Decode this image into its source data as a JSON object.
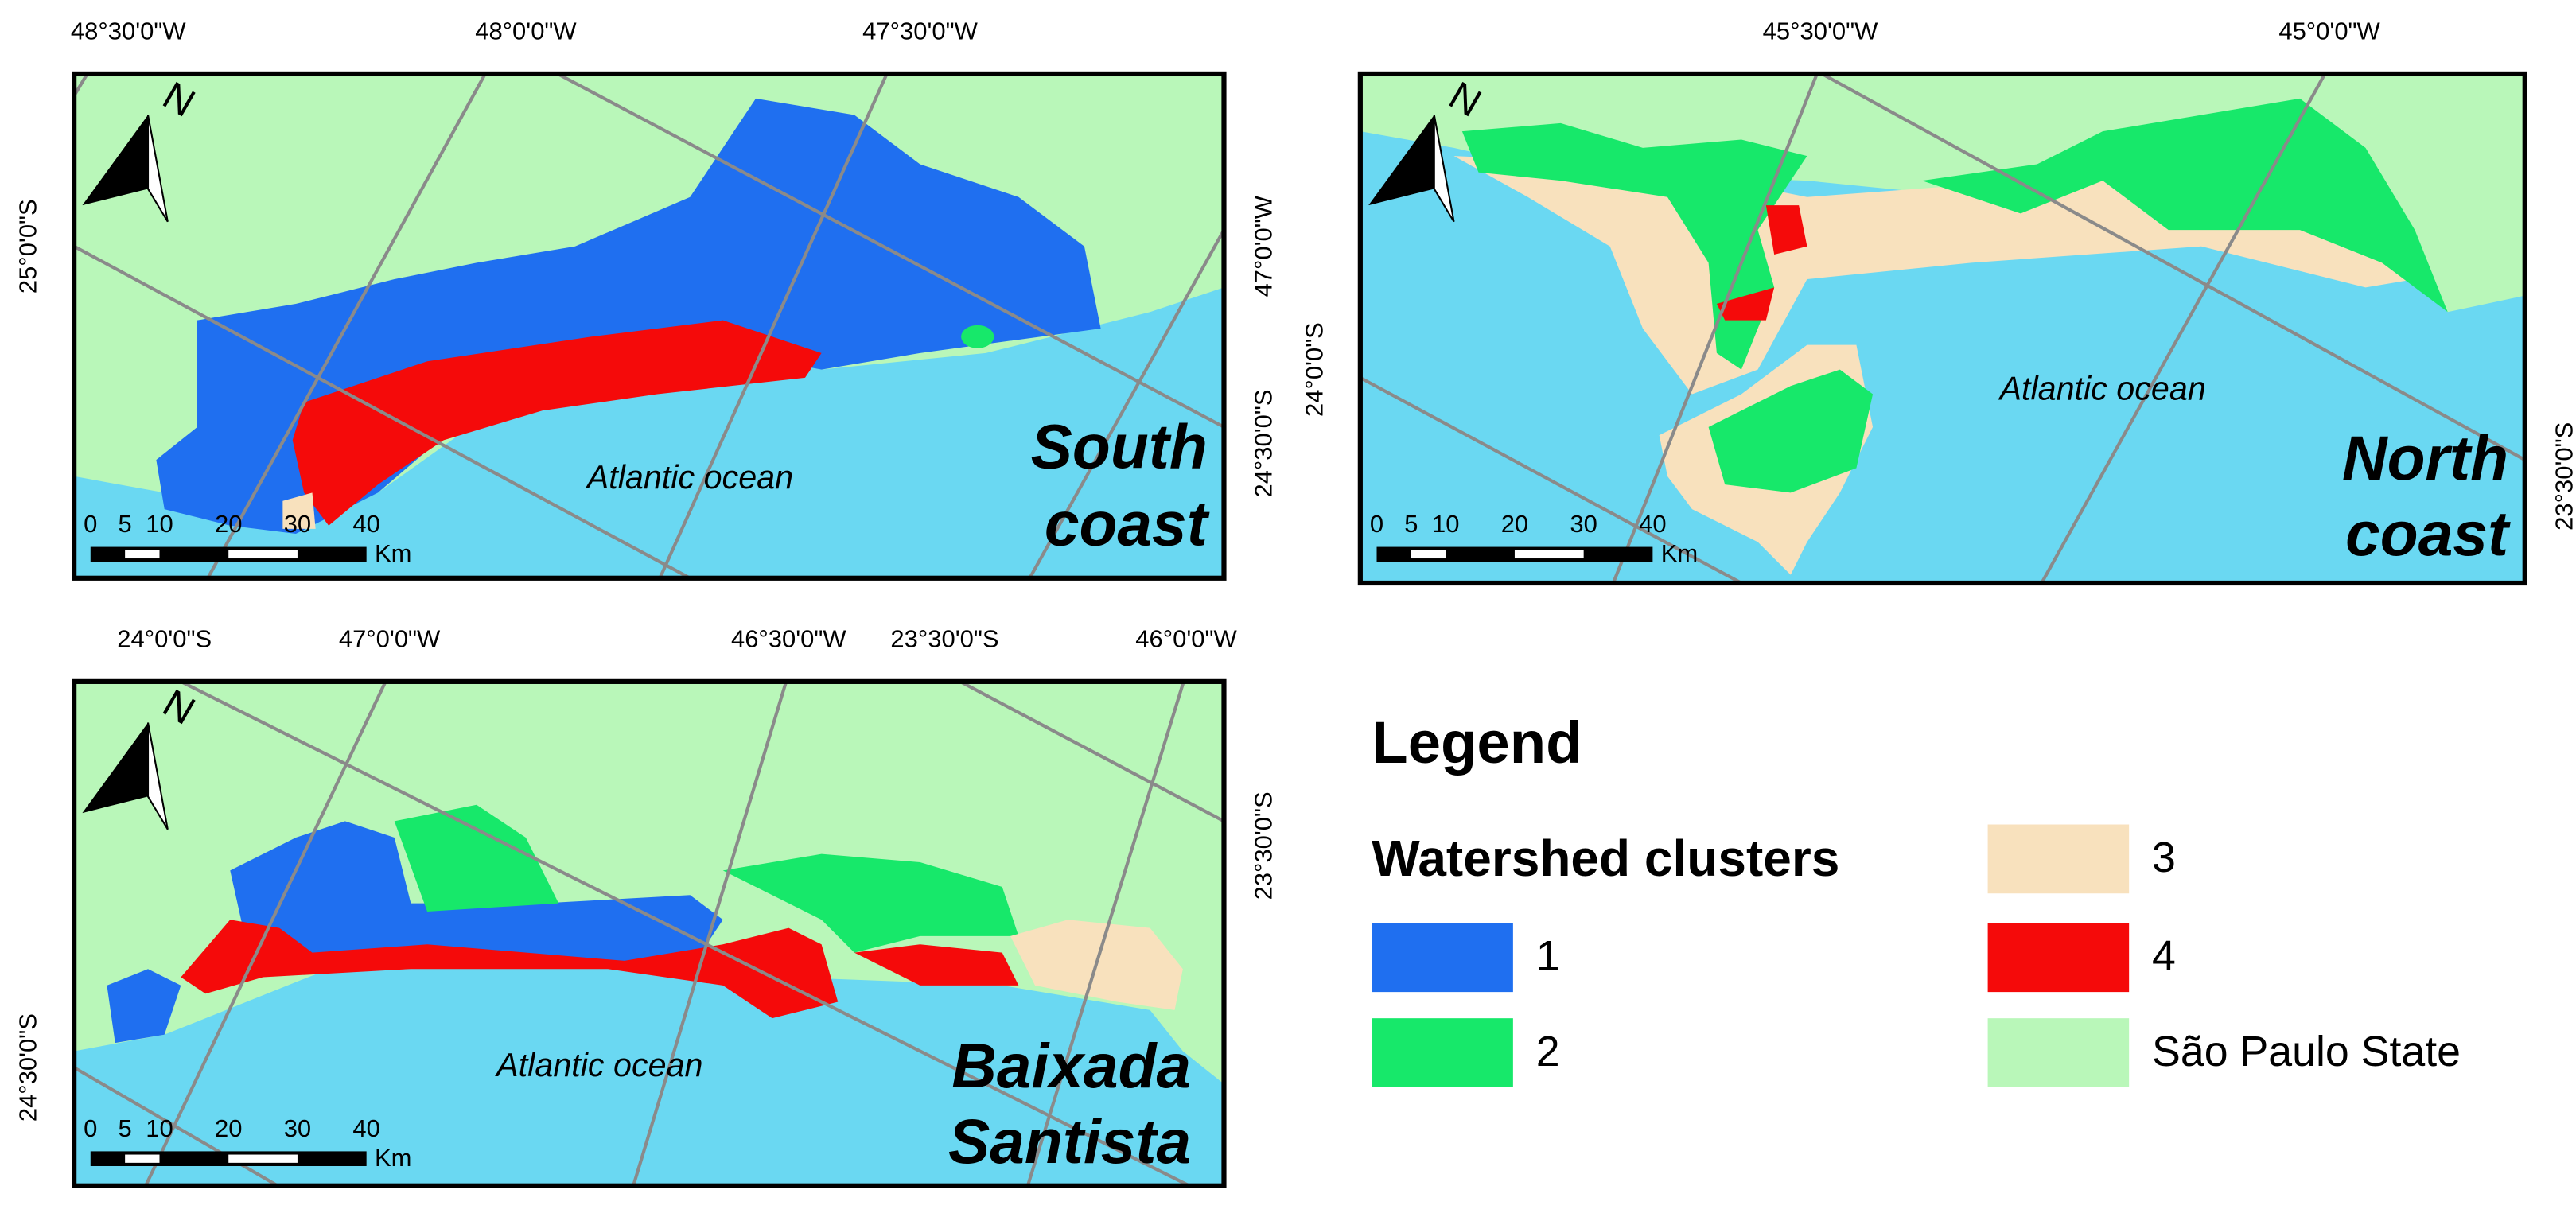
{
  "panels": [
    {
      "title": [
        "South",
        "coast"
      ],
      "ocean_label": "Atlantic ocean",
      "north": "N",
      "scale_ticks": [
        0,
        5,
        10,
        20,
        30,
        40
      ],
      "scale_unit": "Km",
      "top_labels": [
        "48°30'0\"W",
        "48°0'0\"W",
        "47°30'0\"W"
      ],
      "left_labels": [
        "25°0'0\"S"
      ],
      "right_labels": [
        "47°0'0\"W",
        "24°30'0\"S"
      ]
    },
    {
      "title": [
        "North",
        "coast"
      ],
      "ocean_label": "Atlantic ocean",
      "north": "N",
      "scale_ticks": [
        0,
        5,
        10,
        20,
        30,
        40
      ],
      "scale_unit": "Km",
      "top_labels": [
        "45°30'0\"W",
        "45°0'0\"W"
      ],
      "left_labels": [
        "24°0'0\"S"
      ],
      "right_labels": [
        "23°30'0\"S"
      ]
    },
    {
      "title": [
        "Baixada",
        "Santista"
      ],
      "ocean_label": "Atlantic ocean",
      "north": "N",
      "scale_ticks": [
        0,
        5,
        10,
        20,
        30,
        40
      ],
      "scale_unit": "Km",
      "top_labels": [
        "24°0'0\"S",
        "47°0'0\"W",
        "46°30'0\"W",
        "23°30'0\"S",
        "46°0'0\"W"
      ],
      "left_labels": [
        "24°30'0\"S"
      ],
      "right_labels": [
        "23°30'0\"S"
      ]
    }
  ],
  "legend": {
    "title": "Legend",
    "subtitle": "Watershed clusters",
    "items": [
      {
        "label": "1",
        "color": "#1f6ff0"
      },
      {
        "label": "2",
        "color": "#17e86a"
      },
      {
        "label": "3",
        "color": "#f8e1bd"
      },
      {
        "label": "4",
        "color": "#f50a0a"
      },
      {
        "label": "São Paulo State",
        "color": "#b9f7b9"
      }
    ]
  }
}
